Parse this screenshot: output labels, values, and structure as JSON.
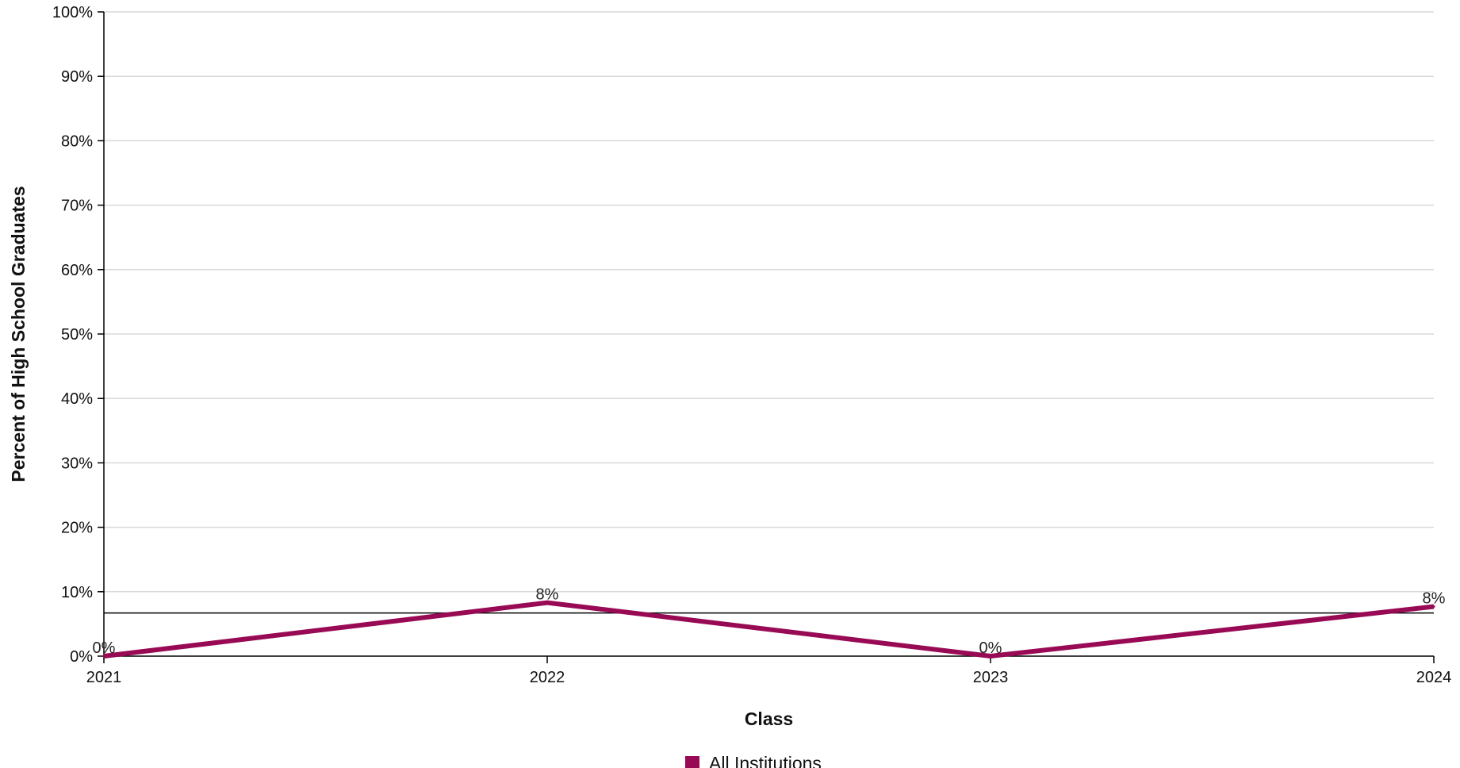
{
  "chart_data": {
    "type": "line",
    "title": "",
    "xlabel": "Class",
    "ylabel": "Percent of High School Graduates",
    "categories": [
      "2021",
      "2022",
      "2023",
      "2024"
    ],
    "series": [
      {
        "name": "All Institutions",
        "values": [
          0,
          8.3,
          0,
          7.7
        ],
        "labels": [
          "0%",
          "8%",
          "0%",
          "8%"
        ],
        "color": "#990a55"
      }
    ],
    "reference_line": {
      "value": 6.7,
      "color": "#000000"
    },
    "ylim": [
      0,
      100
    ],
    "yticks": [
      0,
      10,
      20,
      30,
      40,
      50,
      60,
      70,
      80,
      90,
      100
    ],
    "ytick_labels": [
      "0%",
      "10%",
      "20%",
      "30%",
      "40%",
      "50%",
      "60%",
      "70%",
      "80%",
      "90%",
      "100%"
    ],
    "grid": true,
    "legend_position": "bottom-center"
  }
}
